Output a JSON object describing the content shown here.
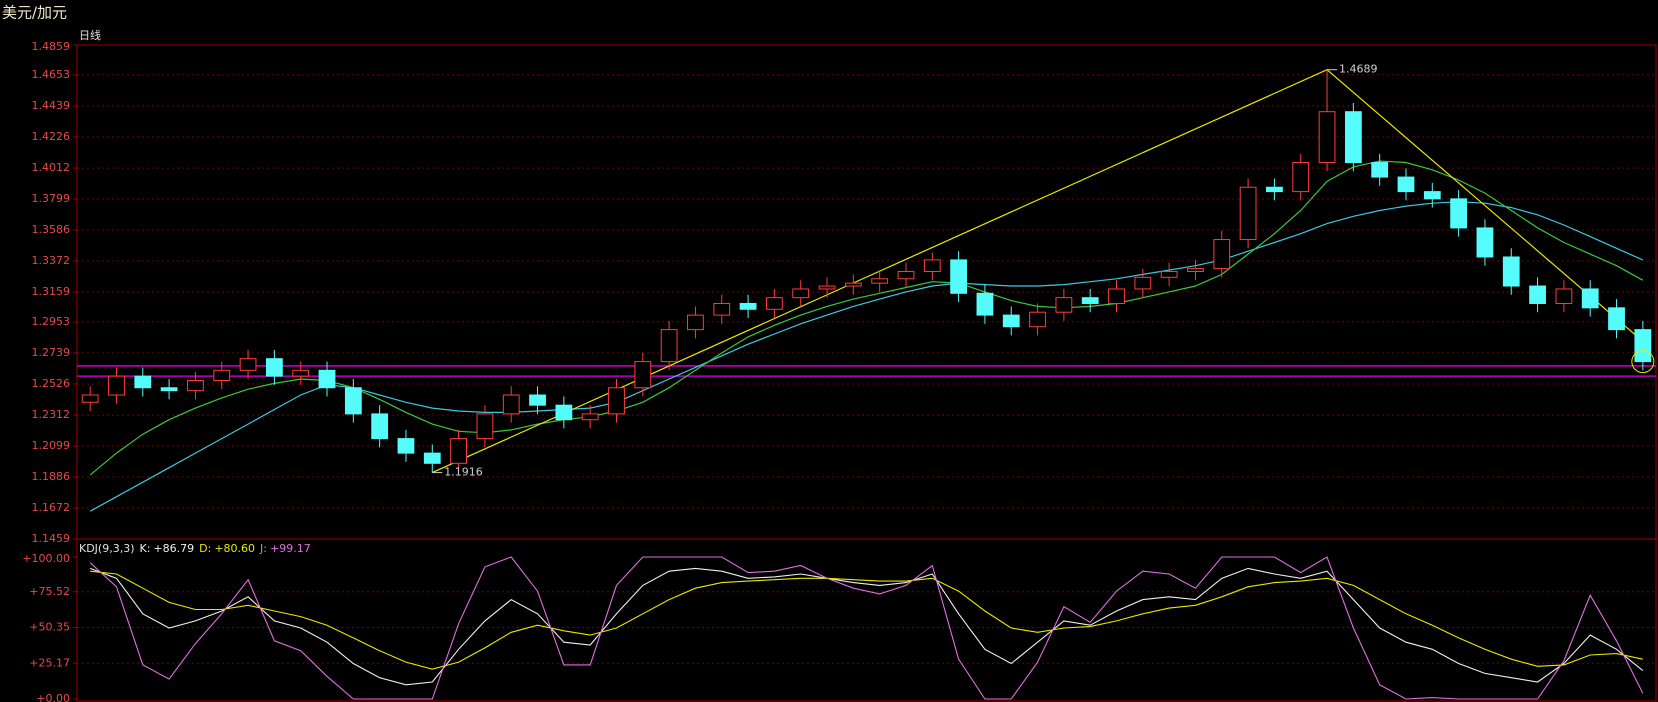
{
  "chart_data": [
    {
      "type": "candlestick",
      "title": "美元/加元",
      "subtitle": "日线",
      "open": [
        1.24,
        1.245,
        1.258,
        1.25,
        1.248,
        1.255,
        1.262,
        1.27,
        1.258,
        1.262,
        1.25,
        1.232,
        1.215,
        1.205,
        1.198,
        1.215,
        1.232,
        1.245,
        1.238,
        1.228,
        1.232,
        1.25,
        1.268,
        1.29,
        1.3,
        1.308,
        1.304,
        1.312,
        1.318,
        1.32,
        1.322,
        1.325,
        1.33,
        1.338,
        1.315,
        1.3,
        1.292,
        1.302,
        1.312,
        1.308,
        1.318,
        1.326,
        1.33,
        1.332,
        1.352,
        1.388,
        1.385,
        1.405,
        1.44,
        1.405,
        1.395,
        1.385,
        1.38,
        1.36,
        1.34,
        1.32,
        1.308,
        1.318,
        1.305,
        1.29
      ],
      "high": [
        1.251,
        1.264,
        1.264,
        1.256,
        1.261,
        1.268,
        1.276,
        1.276,
        1.268,
        1.268,
        1.256,
        1.238,
        1.221,
        1.211,
        1.221,
        1.238,
        1.251,
        1.251,
        1.244,
        1.238,
        1.256,
        1.274,
        1.296,
        1.306,
        1.314,
        1.314,
        1.318,
        1.324,
        1.326,
        1.328,
        1.331,
        1.336,
        1.343,
        1.344,
        1.321,
        1.306,
        1.308,
        1.318,
        1.318,
        1.324,
        1.332,
        1.336,
        1.338,
        1.358,
        1.394,
        1.394,
        1.411,
        1.4689,
        1.446,
        1.411,
        1.401,
        1.391,
        1.386,
        1.366,
        1.346,
        1.326,
        1.324,
        1.324,
        1.311,
        1.296
      ],
      "low": [
        1.234,
        1.239,
        1.244,
        1.242,
        1.242,
        1.249,
        1.256,
        1.252,
        1.252,
        1.244,
        1.226,
        1.209,
        1.199,
        1.1916,
        1.192,
        1.209,
        1.226,
        1.232,
        1.222,
        1.222,
        1.226,
        1.244,
        1.262,
        1.284,
        1.294,
        1.298,
        1.298,
        1.306,
        1.312,
        1.314,
        1.316,
        1.319,
        1.324,
        1.309,
        1.294,
        1.286,
        1.286,
        1.296,
        1.302,
        1.302,
        1.312,
        1.32,
        1.324,
        1.326,
        1.346,
        1.379,
        1.379,
        1.399,
        1.399,
        1.389,
        1.379,
        1.374,
        1.354,
        1.334,
        1.314,
        1.302,
        1.302,
        1.299,
        1.284,
        1.262
      ],
      "close": [
        1.245,
        1.258,
        1.25,
        1.248,
        1.255,
        1.262,
        1.27,
        1.258,
        1.262,
        1.25,
        1.232,
        1.215,
        1.205,
        1.198,
        1.215,
        1.232,
        1.245,
        1.238,
        1.228,
        1.232,
        1.25,
        1.268,
        1.29,
        1.3,
        1.308,
        1.304,
        1.312,
        1.318,
        1.32,
        1.322,
        1.325,
        1.33,
        1.338,
        1.315,
        1.3,
        1.292,
        1.302,
        1.312,
        1.308,
        1.318,
        1.326,
        1.33,
        1.332,
        1.352,
        1.388,
        1.385,
        1.405,
        1.44,
        1.405,
        1.395,
        1.385,
        1.38,
        1.36,
        1.34,
        1.32,
        1.308,
        1.318,
        1.305,
        1.29,
        1.268
      ],
      "up_color": "#ff3c3c",
      "down_color": "#54fcfc",
      "lines": [
        {
          "color": "#3cc8e0",
          "values": [
            1.165,
            1.175,
            1.185,
            1.195,
            1.205,
            1.215,
            1.225,
            1.235,
            1.245,
            1.252,
            1.25,
            1.245,
            1.24,
            1.236,
            1.234,
            1.233,
            1.233,
            1.234,
            1.235,
            1.236,
            1.24,
            1.248,
            1.256,
            1.264,
            1.272,
            1.28,
            1.287,
            1.294,
            1.3,
            1.306,
            1.311,
            1.316,
            1.32,
            1.322,
            1.321,
            1.32,
            1.32,
            1.321,
            1.323,
            1.325,
            1.328,
            1.331,
            1.334,
            1.338,
            1.344,
            1.35,
            1.356,
            1.363,
            1.368,
            1.372,
            1.375,
            1.377,
            1.378,
            1.377,
            1.374,
            1.369,
            1.362,
            1.354,
            1.346,
            1.338
          ]
        },
        {
          "color": "#3cc83c",
          "values": [
            1.19,
            1.205,
            1.218,
            1.228,
            1.236,
            1.243,
            1.249,
            1.253,
            1.256,
            1.255,
            1.25,
            1.242,
            1.233,
            1.225,
            1.22,
            1.219,
            1.221,
            1.225,
            1.228,
            1.23,
            1.234,
            1.24,
            1.25,
            1.262,
            1.274,
            1.285,
            1.293,
            1.3,
            1.306,
            1.311,
            1.315,
            1.319,
            1.323,
            1.322,
            1.316,
            1.31,
            1.306,
            1.305,
            1.306,
            1.308,
            1.312,
            1.316,
            1.32,
            1.328,
            1.342,
            1.356,
            1.372,
            1.392,
            1.402,
            1.406,
            1.405,
            1.4,
            1.393,
            1.384,
            1.372,
            1.36,
            1.35,
            1.342,
            1.334,
            1.324
          ]
        }
      ],
      "ylim": [
        1.1459,
        1.4859
      ],
      "yticks": [
        1.1459,
        1.1672,
        1.1886,
        1.2099,
        1.2312,
        1.2526,
        1.2739,
        1.2953,
        1.3159,
        1.3372,
        1.3586,
        1.3799,
        1.4012,
        1.4226,
        1.4439,
        1.4653,
        1.4859
      ],
      "grid": true,
      "annotations": [
        {
          "x": 47,
          "value": 1.4689
        },
        {
          "x": 13,
          "value": 1.1916
        }
      ],
      "trendline": {
        "color": "#e8e800",
        "x": [
          13,
          47,
          59
        ],
        "values": [
          1.1916,
          1.4689,
          1.282
        ]
      },
      "hlines": {
        "color": "#e000e0",
        "values": [
          1.265,
          1.258
        ]
      }
    },
    {
      "type": "line",
      "title": "KDJ(9,3,3)",
      "series": [
        {
          "name": "K:",
          "reading": "+86.79",
          "color": "#f0f0f0",
          "values": [
            92,
            85,
            60,
            50,
            55,
            62,
            72,
            55,
            50,
            40,
            25,
            15,
            10,
            12,
            35,
            55,
            70,
            60,
            40,
            38,
            60,
            80,
            90,
            92,
            90,
            85,
            86,
            88,
            85,
            82,
            80,
            82,
            88,
            60,
            35,
            25,
            40,
            55,
            52,
            62,
            70,
            72,
            70,
            85,
            92,
            88,
            85,
            90,
            70,
            50,
            40,
            35,
            25,
            18,
            15,
            12,
            25,
            45,
            35,
            20
          ]
        },
        {
          "name": "D:",
          "reading": "+80.60",
          "color": "#e8e800",
          "values": [
            90,
            88,
            78,
            68,
            63,
            63,
            66,
            62,
            58,
            52,
            43,
            34,
            26,
            21,
            26,
            36,
            47,
            52,
            48,
            45,
            50,
            60,
            70,
            78,
            82,
            83,
            84,
            85,
            85,
            84,
            83,
            83,
            85,
            76,
            62,
            50,
            47,
            50,
            51,
            55,
            60,
            64,
            66,
            72,
            79,
            82,
            83,
            85,
            80,
            70,
            60,
            52,
            43,
            35,
            28,
            23,
            24,
            31,
            32,
            28
          ]
        },
        {
          "name": "J:",
          "reading": "+99.17",
          "color": "#e070e0",
          "values": [
            96,
            79,
            24,
            14,
            39,
            60,
            84,
            41,
            34,
            16,
            0,
            0,
            0,
            0,
            53,
            93,
            100,
            76,
            24,
            24,
            80,
            100,
            100,
            100,
            100,
            89,
            90,
            94,
            85,
            78,
            74,
            80,
            94,
            28,
            0,
            0,
            26,
            65,
            54,
            76,
            90,
            88,
            78,
            100,
            100,
            100,
            89,
            100,
            50,
            10,
            0,
            1,
            0,
            0,
            0,
            0,
            27,
            73,
            41,
            4
          ]
        }
      ],
      "ylim": [
        0,
        100
      ],
      "yticks": [
        {
          "value": 0,
          "label": "+0.00"
        },
        {
          "value": 25.17,
          "label": "+25.17"
        },
        {
          "value": 50.35,
          "label": "+50.35"
        },
        {
          "value": 75.52,
          "label": "+75.52"
        },
        {
          "value": 100,
          "label": "+100.00"
        }
      ],
      "grid": true
    }
  ]
}
